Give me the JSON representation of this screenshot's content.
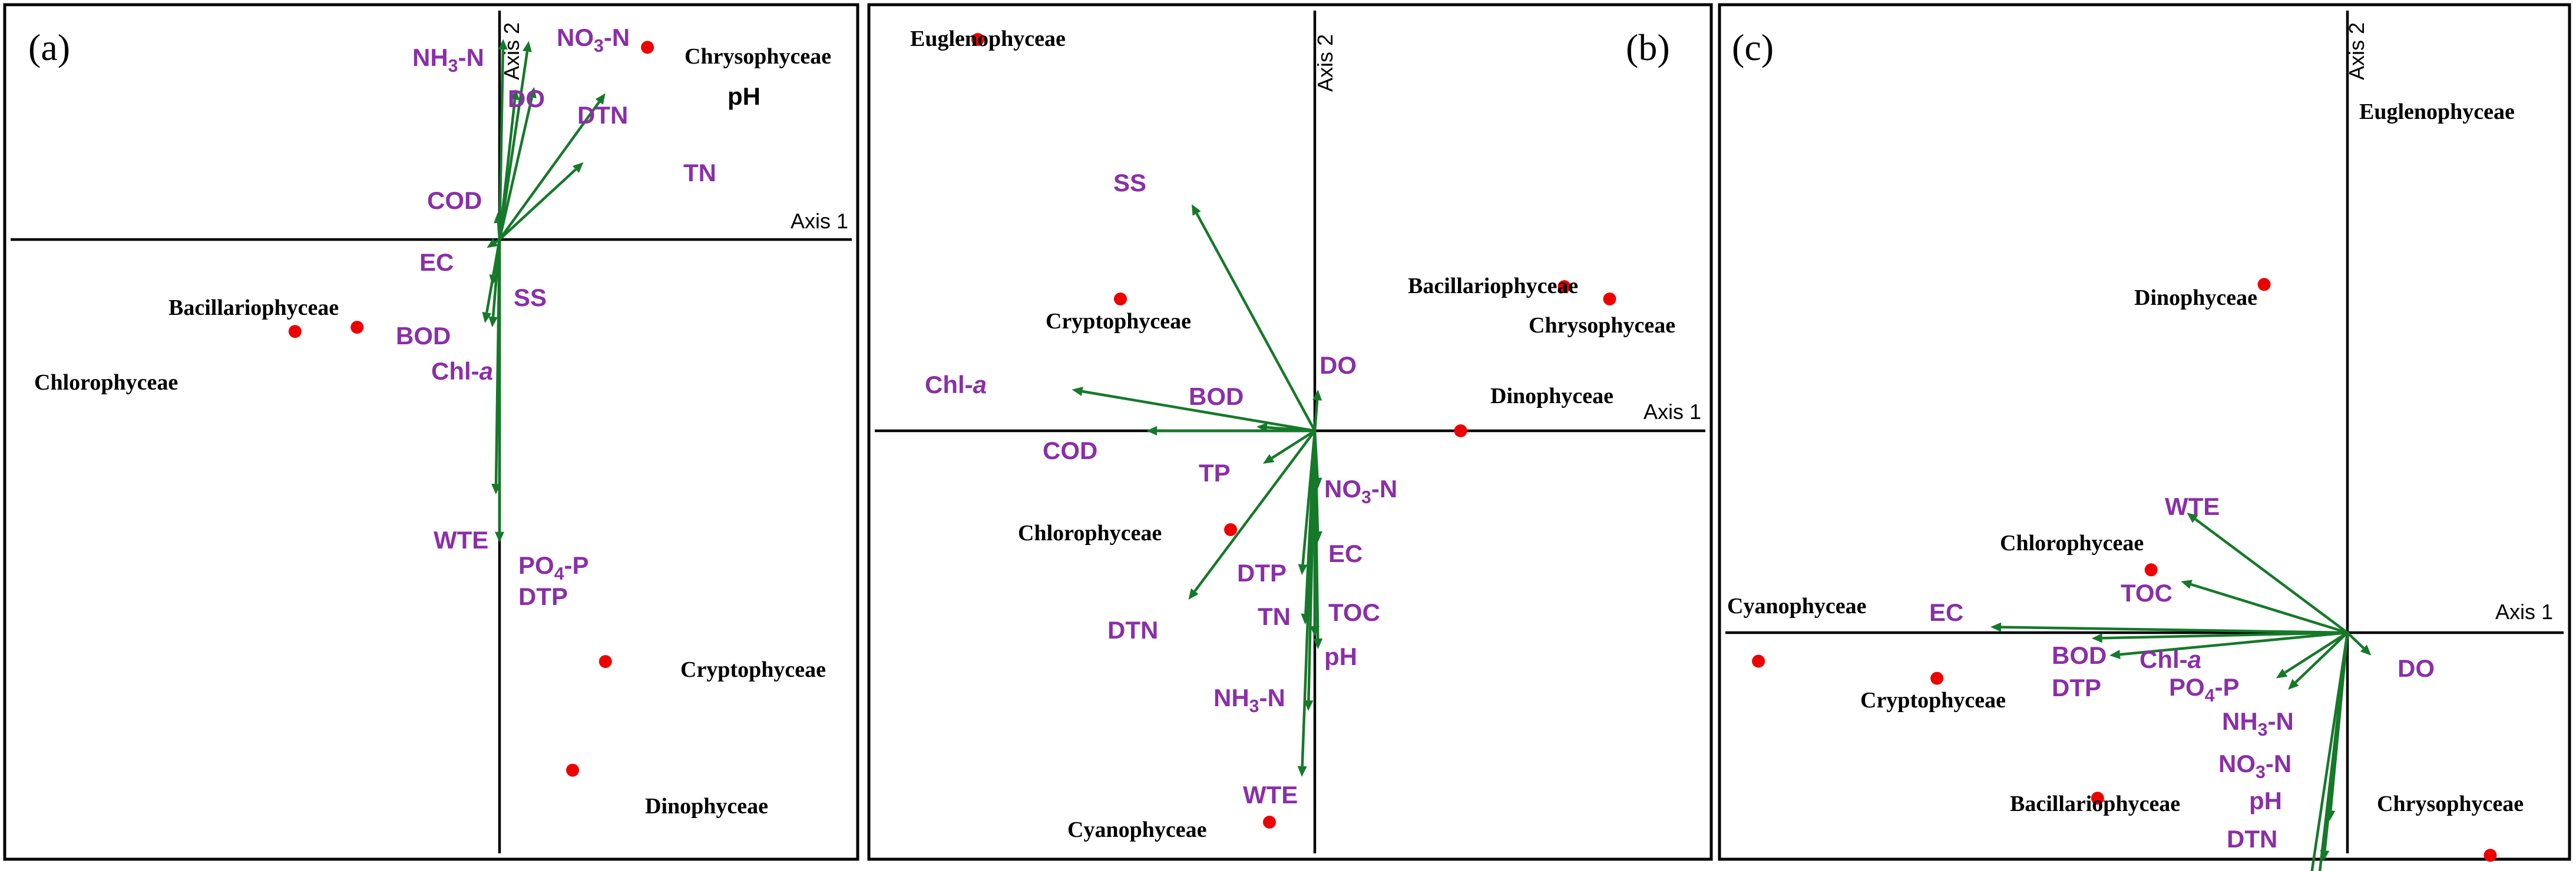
{
  "colors": {
    "arrow": "#16792a",
    "env_label": "#8a2fa8",
    "dot": "#ee0000",
    "axis": "#000000"
  },
  "chart_data": [
    {
      "type": "scatter",
      "panel_label": "(a)",
      "xlabel": "Axis 1",
      "ylabel": "Axis 2",
      "xlim": [
        -1,
        1
      ],
      "ylim": [
        -1,
        1
      ],
      "grid": false,
      "environmental_vectors": [
        {
          "name": "NH3-N",
          "x": 0.02,
          "y": 0.96
        },
        {
          "name": "NO3-N",
          "x": 0.16,
          "y": 0.95
        },
        {
          "name": "DO",
          "x": 0.09,
          "y": 0.72
        },
        {
          "name": "DTN",
          "x": 0.19,
          "y": 0.73
        },
        {
          "name": "pH",
          "x": 0.58,
          "y": 0.7
        },
        {
          "name": "TN",
          "x": 0.46,
          "y": 0.37
        },
        {
          "name": "COD",
          "x": -0.01,
          "y": 0.13
        },
        {
          "name": "EC",
          "x": -0.07,
          "y": -0.04
        },
        {
          "name": "SS",
          "x": -0.04,
          "y": -0.22
        },
        {
          "name": "BOD",
          "x": -0.08,
          "y": -0.4
        },
        {
          "name": "Chl-a",
          "x": -0.04,
          "y": -0.42
        },
        {
          "name": "WTE",
          "x": -0.02,
          "y": -1.22
        },
        {
          "name": "PO4-P DTP",
          "x": 0.0,
          "y": -1.45
        }
      ],
      "groups": [
        {
          "name": "Chrysophyceae",
          "x": 0.81,
          "y": 0.92
        },
        {
          "name": "Bacillariophyceae",
          "x": -0.78,
          "y": -0.42
        },
        {
          "name": "Chlorophyceae",
          "x": -1.12,
          "y": -0.44
        },
        {
          "name": "Cryptophyceae",
          "x": 0.58,
          "y": -2.02
        },
        {
          "name": "Dinophyceae",
          "x": 0.4,
          "y": -2.54
        }
      ],
      "text": {
        "NH3-N": {
          "pre": "NH",
          "sub": "3",
          "post": "-N"
        },
        "NO3-N": {
          "pre": "NO",
          "sub": "3",
          "post": "-N"
        },
        "DO": "DO",
        "DTN": "DTN",
        "pH": "pH",
        "TN": "TN",
        "COD": "COD",
        "EC": "EC",
        "SS": "SS",
        "BOD": "BOD",
        "Chl-a": {
          "pre": "Chl-",
          "italic": "a"
        },
        "WTE": "WTE",
        "PO4-P": {
          "pre": "PO",
          "sub": "4",
          "post": "-P"
        },
        "DTP": "DTP"
      }
    },
    {
      "type": "scatter",
      "panel_label": "(b)",
      "xlabel": "Axis 1",
      "ylabel": "Axis 2",
      "xlim": [
        -1,
        1
      ],
      "ylim": [
        -1,
        1
      ],
      "grid": false,
      "environmental_vectors": [
        {
          "name": "SS",
          "x": -0.38,
          "y": 0.55
        },
        {
          "name": "DO",
          "x": 0.01,
          "y": 0.1
        },
        {
          "name": "Chl-a",
          "x": -0.75,
          "y": 0.1
        },
        {
          "name": "BOD",
          "x": -0.18,
          "y": 0.01
        },
        {
          "name": "COD",
          "x": -0.52,
          "y": 0.0
        },
        {
          "name": "TP",
          "x": -0.16,
          "y": -0.08
        },
        {
          "name": "NO3-N",
          "x": 0.01,
          "y": -0.14
        },
        {
          "name": "EC",
          "x": 0.01,
          "y": -0.27
        },
        {
          "name": "DTN",
          "x": -0.39,
          "y": -0.41
        },
        {
          "name": "DTP",
          "x": -0.04,
          "y": -0.35
        },
        {
          "name": "TN",
          "x": -0.03,
          "y": -0.47
        },
        {
          "name": "TOC",
          "x": 0.0,
          "y": -0.5
        },
        {
          "name": "pH",
          "x": 0.01,
          "y": -0.53
        },
        {
          "name": "NH3-N",
          "x": -0.02,
          "y": -0.68
        },
        {
          "name": "WTE",
          "x": -0.04,
          "y": -0.84
        }
      ],
      "groups": [
        {
          "name": "Euglenophyceae",
          "x": -1.04,
          "y": 0.95
        },
        {
          "name": "Cryptophyceae",
          "x": -0.6,
          "y": 0.32
        },
        {
          "name": "Bacillariophyceae",
          "x": 0.77,
          "y": 0.35
        },
        {
          "name": "Chrysophyceae",
          "x": 0.91,
          "y": 0.32
        },
        {
          "name": "Dinophyceae",
          "x": 0.45,
          "y": 0.0
        },
        {
          "name": "Chlorophyceae",
          "x": -0.26,
          "y": -0.24
        },
        {
          "name": "Cyanophyceae",
          "x": -0.14,
          "y": -0.95
        }
      ],
      "text": {
        "SS": "SS",
        "DO": "DO",
        "Chl-a": {
          "pre": "Chl-",
          "italic": "a"
        },
        "BOD": "BOD",
        "COD": "COD",
        "TP": "TP",
        "NO3-N": {
          "pre": "NO",
          "sub": "3",
          "post": "-N"
        },
        "EC": "EC",
        "DTN": "DTN",
        "DTP": "DTP",
        "TN": "TN",
        "TOC": "TOC",
        "pH": "pH",
        "NH3-N": {
          "pre": "NH",
          "sub": "3",
          "post": "-N"
        },
        "WTE": "WTE"
      }
    },
    {
      "type": "scatter",
      "panel_label": "(c)",
      "xlabel": "Axis 1",
      "ylabel": "Axis 2",
      "xlim": [
        -1,
        1
      ],
      "ylim": [
        -1,
        1
      ],
      "grid": false,
      "environmental_vectors": [
        {
          "name": "WTE",
          "x": -0.27,
          "y": 0.21
        },
        {
          "name": "TOC",
          "x": -0.28,
          "y": 0.09
        },
        {
          "name": "EC",
          "x": -0.6,
          "y": 0.01
        },
        {
          "name": "BOD",
          "x": -0.43,
          "y": -0.01
        },
        {
          "name": "DTP",
          "x": -0.4,
          "y": -0.04
        },
        {
          "name": "Chl-a",
          "x": -0.12,
          "y": -0.08
        },
        {
          "name": "PO4-P",
          "x": -0.1,
          "y": -0.1
        },
        {
          "name": "DO",
          "x": 0.04,
          "y": -0.04
        },
        {
          "name": "NH3-N",
          "x": -0.03,
          "y": -0.33
        },
        {
          "name": "NO3-N",
          "x": -0.04,
          "y": -0.4
        },
        {
          "name": "pH",
          "x": -0.05,
          "y": -0.45
        },
        {
          "name": "DTN",
          "x": -0.07,
          "y": -0.49
        }
      ],
      "groups": [
        {
          "name": "Euglenophyceae",
          "x": 0.3,
          "y": 1.18
        },
        {
          "name": "Dinophyceae",
          "x": -0.14,
          "y": 0.61
        },
        {
          "name": "Chlorophyceae",
          "x": -0.33,
          "y": 0.11
        },
        {
          "name": "Cyanophyceae",
          "x": -0.99,
          "y": -0.05
        },
        {
          "name": "Cryptophyceae",
          "x": -0.69,
          "y": -0.08
        },
        {
          "name": "Bacillariophyceae",
          "x": -0.42,
          "y": -0.29
        },
        {
          "name": "Chrysophyceae",
          "x": 0.24,
          "y": -0.39
        }
      ],
      "text": {
        "WTE": "WTE",
        "TOC": "TOC",
        "EC": "EC",
        "BOD": "BOD",
        "DTP": "DTP",
        "Chl-a": {
          "pre": "Chl-",
          "italic": "a"
        },
        "PO4-P": {
          "pre": "PO",
          "sub": "4",
          "post": "-P"
        },
        "DO": "DO",
        "NH3-N": {
          "pre": "NH",
          "sub": "3",
          "post": "-N"
        },
        "NO3-N": {
          "pre": "NO",
          "sub": "3",
          "post": "-N"
        },
        "pH": "pH",
        "DTN": "DTN"
      }
    }
  ]
}
